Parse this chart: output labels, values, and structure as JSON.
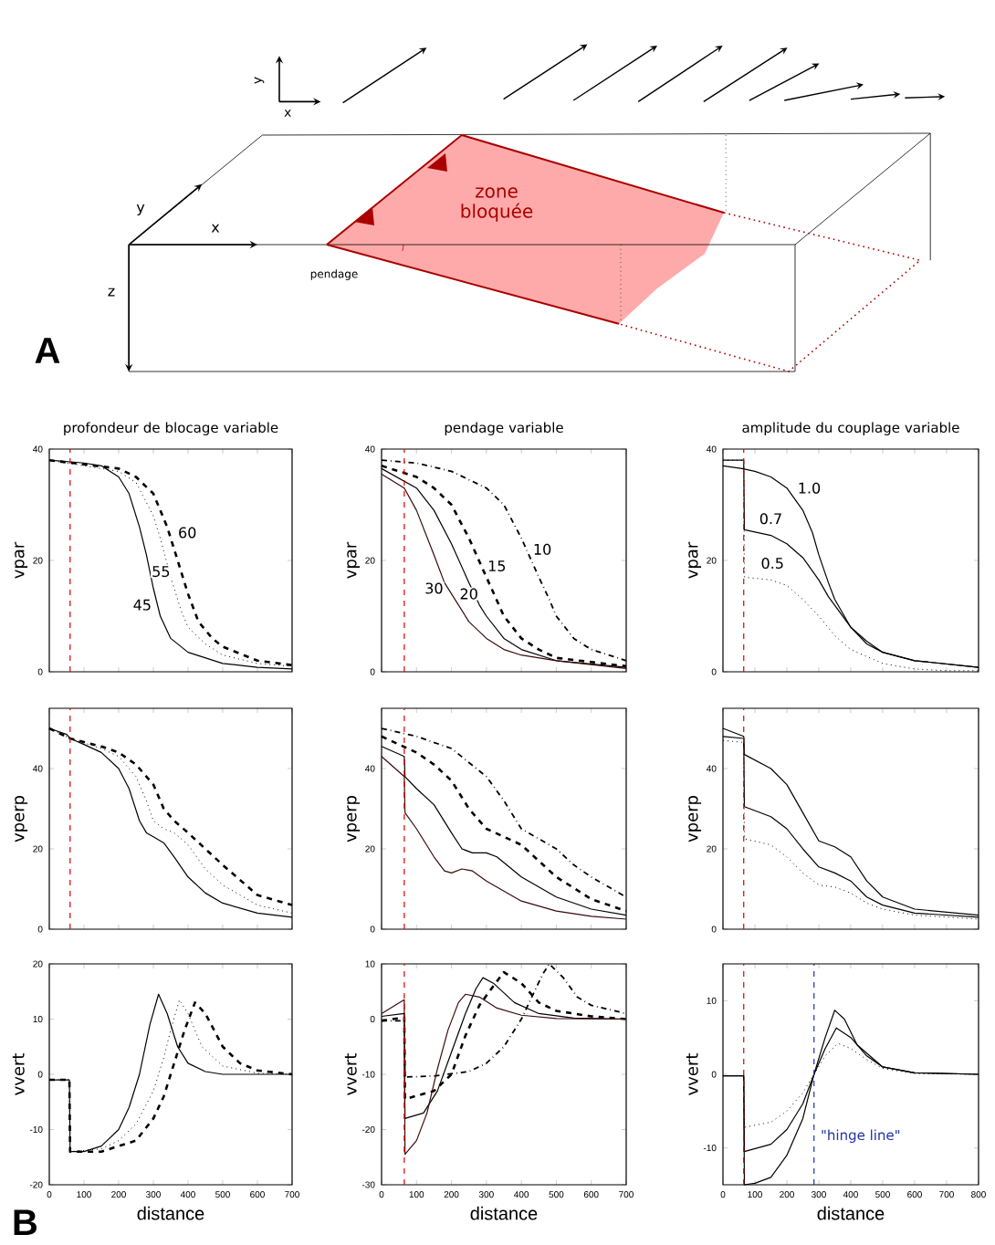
{
  "chart_data": [
    {
      "type": "other",
      "annotations": [
        "A",
        "zone bloquée",
        "pendage",
        "x",
        "y",
        "z",
        "x",
        "y"
      ]
    },
    {
      "type": "line",
      "title": "profondeur de blocage variable",
      "ylabel": "vpar",
      "xlim": [
        0,
        700
      ],
      "ylim": [
        0,
        40
      ],
      "xticks": [
        0,
        100,
        200,
        300,
        400,
        500,
        600,
        700
      ],
      "yticks": [
        0,
        20,
        40
      ],
      "tick_labels": "y",
      "grid": false,
      "legend": false,
      "ref_lines": [
        {
          "axis": "x",
          "value": 60,
          "color": "#dd0000",
          "line_style": "dashed"
        }
      ],
      "series": [
        {
          "name": "45",
          "color": "#000000",
          "line_style": "solid",
          "x": [
            0,
            100,
            150,
            200,
            230,
            260,
            280,
            300,
            320,
            350,
            400,
            500,
            600,
            700
          ],
          "values": [
            38,
            37.5,
            37,
            35,
            32,
            26,
            21,
            15,
            10,
            6,
            3.5,
            1.5,
            0.8,
            0.5
          ]
        },
        {
          "name": "55",
          "color": "#000000",
          "line_style": "dotted",
          "x": [
            0,
            200,
            250,
            300,
            320,
            350,
            380,
            400,
            450,
            500,
            600,
            700
          ],
          "values": [
            38,
            36,
            34,
            28,
            24,
            17,
            11,
            8,
            5,
            3,
            1.5,
            1
          ]
        },
        {
          "name": "60",
          "color": "#000000",
          "line_style": "dashed",
          "x": [
            0,
            200,
            250,
            300,
            340,
            370,
            400,
            430,
            470,
            500,
            600,
            700
          ],
          "values": [
            38,
            36.5,
            35,
            32,
            26,
            20,
            14,
            9,
            6,
            4.5,
            2,
            1.2
          ]
        }
      ]
    },
    {
      "type": "line",
      "title": "pendage variable",
      "ylabel": "vpar",
      "xlim": [
        0,
        700
      ],
      "ylim": [
        0,
        40
      ],
      "xticks": [
        0,
        100,
        200,
        300,
        400,
        500,
        600,
        700
      ],
      "yticks": [
        0,
        20,
        40
      ],
      "tick_labels": "y",
      "grid": false,
      "legend": false,
      "ref_lines": [
        {
          "axis": "x",
          "value": 65,
          "color": "#dd0000",
          "line_style": "dashed"
        }
      ],
      "series": [
        {
          "name": "10",
          "color": "#000000",
          "line_style": "dashdot",
          "x": [
            0,
            100,
            200,
            300,
            350,
            400,
            450,
            480,
            500,
            550,
            600,
            700
          ],
          "values": [
            38,
            37.5,
            36,
            33,
            30,
            24,
            17,
            13,
            10,
            6,
            4,
            2
          ]
        },
        {
          "name": "15",
          "color": "#000000",
          "line_style": "dashed",
          "x": [
            0,
            100,
            150,
            200,
            250,
            300,
            350,
            400,
            450,
            500,
            700
          ],
          "values": [
            37,
            35,
            33,
            30,
            24,
            17,
            10,
            6,
            4,
            2.5,
            1
          ]
        },
        {
          "name": "20",
          "color": "#000000",
          "line_style": "solid",
          "x": [
            0,
            100,
            150,
            200,
            250,
            280,
            300,
            350,
            400,
            500,
            700
          ],
          "values": [
            36.5,
            33,
            29,
            23,
            16,
            12,
            10,
            6,
            4,
            2,
            0.8
          ]
        },
        {
          "name": "30",
          "color": "#3a0a0a",
          "line_style": "solid",
          "x": [
            0,
            65,
            100,
            150,
            180,
            200,
            250,
            300,
            350,
            400,
            500,
            700
          ],
          "values": [
            35.5,
            33,
            29,
            21,
            16,
            14,
            9,
            6,
            4,
            3,
            2,
            0.6
          ]
        }
      ]
    },
    {
      "type": "line",
      "title": "amplitude du couplage variable",
      "ylabel": "vpar",
      "xlim": [
        0,
        800
      ],
      "ylim": [
        0,
        40
      ],
      "xticks": [
        0,
        100,
        200,
        300,
        400,
        500,
        600,
        700,
        800
      ],
      "yticks": [
        0,
        20,
        40
      ],
      "tick_labels": "y",
      "grid": false,
      "legend": false,
      "ref_lines": [
        {
          "axis": "x",
          "value": 65,
          "color": "#dd0000",
          "line_style": "dashed"
        }
      ],
      "series": [
        {
          "name": "1.0",
          "color": "#000000",
          "line_style": "solid",
          "x": [
            0,
            60,
            100,
            150,
            200,
            250,
            280,
            300,
            330,
            350,
            400,
            450,
            500,
            600,
            800
          ],
          "values": [
            37,
            36.5,
            36,
            35,
            33,
            29,
            25,
            21,
            16,
            13,
            8,
            5,
            3.5,
            2,
            0.8
          ]
        },
        {
          "name": "0.7",
          "color": "#000000",
          "line_style": "solid",
          "x": [
            0,
            65,
            67,
            150,
            200,
            250,
            300,
            330,
            400,
            450,
            500,
            600,
            800
          ],
          "values": [
            38,
            38,
            25.5,
            24.5,
            23,
            20.5,
            16.5,
            13.5,
            8,
            5.5,
            3.5,
            2,
            0.8
          ]
        },
        {
          "name": "0.5",
          "color": "#000000",
          "line_style": "dotted",
          "x": [
            0,
            65,
            67,
            150,
            200,
            250,
            300,
            350,
            400,
            500,
            600,
            700,
            800
          ],
          "values": [
            38,
            38,
            17,
            16.5,
            15.5,
            13,
            10,
            6.5,
            4,
            1.5,
            0.5,
            0.2,
            0.2
          ]
        }
      ]
    },
    {
      "type": "line",
      "ylabel": "vperp",
      "xlim": [
        0,
        700
      ],
      "ylim": [
        0,
        55
      ],
      "xticks": [
        0,
        100,
        200,
        300,
        400,
        500,
        600,
        700
      ],
      "yticks": [
        0,
        20,
        40
      ],
      "tick_labels": "y",
      "grid": false,
      "legend": false,
      "ref_lines": [
        {
          "axis": "x",
          "value": 60,
          "color": "#dd0000",
          "line_style": "dashed"
        }
      ],
      "series": [
        {
          "color": "#000000",
          "line_style": "solid",
          "x": [
            0,
            50,
            60,
            100,
            150,
            200,
            230,
            260,
            280,
            300,
            330,
            360,
            400,
            450,
            500,
            600,
            700
          ],
          "values": [
            50,
            48.5,
            47.5,
            46,
            44,
            40,
            35,
            27,
            24,
            23,
            21.5,
            18,
            13,
            9,
            6.5,
            4,
            3
          ]
        },
        {
          "color": "#000000",
          "line_style": "dotted",
          "x": [
            0,
            60,
            150,
            200,
            250,
            280,
            300,
            330,
            360,
            400,
            450,
            500,
            600,
            700
          ],
          "values": [
            50,
            47.5,
            45,
            43,
            38,
            32,
            27,
            25,
            24,
            21,
            15,
            11,
            6,
            4
          ]
        },
        {
          "color": "#000000",
          "line_style": "dashed",
          "x": [
            0,
            60,
            150,
            200,
            250,
            300,
            330,
            360,
            400,
            450,
            500,
            600,
            700
          ],
          "values": [
            50,
            47.5,
            45.5,
            44,
            41,
            36,
            30,
            27,
            24,
            20,
            16,
            8.5,
            6
          ]
        }
      ]
    },
    {
      "type": "line",
      "ylabel": "vperp",
      "xlim": [
        0,
        700
      ],
      "ylim": [
        0,
        55
      ],
      "xticks": [
        0,
        100,
        200,
        300,
        400,
        500,
        600,
        700
      ],
      "yticks": [
        0,
        20,
        40
      ],
      "tick_labels": "y",
      "grid": false,
      "legend": false,
      "ref_lines": [
        {
          "axis": "x",
          "value": 65,
          "color": "#dd0000",
          "line_style": "dashed"
        }
      ],
      "series": [
        {
          "color": "#000000",
          "line_style": "dashdot",
          "x": [
            0,
            100,
            200,
            300,
            350,
            400,
            450,
            500,
            550,
            600,
            700
          ],
          "values": [
            50,
            48,
            45,
            38,
            32,
            25,
            22.5,
            20,
            16,
            13,
            8
          ]
        },
        {
          "color": "#000000",
          "line_style": "dashed",
          "x": [
            0,
            100,
            150,
            200,
            250,
            300,
            350,
            400,
            450,
            500,
            600,
            700
          ],
          "values": [
            48,
            44,
            41,
            37,
            30,
            25,
            23,
            21,
            17,
            13,
            7.5,
            4.5
          ]
        },
        {
          "color": "#000000",
          "line_style": "solid",
          "x": [
            0,
            65,
            67,
            100,
            150,
            200,
            230,
            260,
            300,
            330,
            400,
            500,
            600,
            700
          ],
          "values": [
            45.5,
            43,
            38,
            35,
            31,
            24,
            20,
            19,
            19,
            18,
            13,
            8,
            5,
            3.5
          ]
        },
        {
          "color": "#3a0a0a",
          "line_style": "solid",
          "x": [
            0,
            65,
            67,
            100,
            150,
            180,
            200,
            230,
            260,
            300,
            400,
            500,
            600,
            700
          ],
          "values": [
            43,
            38,
            29,
            25,
            18,
            14.5,
            14,
            15,
            14.5,
            12,
            7,
            4.5,
            3.2,
            2.5
          ]
        }
      ]
    },
    {
      "type": "line",
      "ylabel": "vperp",
      "xlim": [
        0,
        800
      ],
      "ylim": [
        0,
        55
      ],
      "xticks": [
        0,
        100,
        200,
        300,
        400,
        500,
        600,
        700,
        800
      ],
      "yticks": [
        0,
        20,
        40
      ],
      "tick_labels": "y",
      "grid": false,
      "legend": false,
      "ref_lines": [
        {
          "axis": "x",
          "value": 65,
          "color": "#dd0000",
          "line_style": "dashed"
        }
      ],
      "series": [
        {
          "color": "#000000",
          "line_style": "solid",
          "x": [
            0,
            65,
            67,
            150,
            200,
            250,
            300,
            350,
            400,
            450,
            500,
            600,
            800
          ],
          "values": [
            50,
            48,
            43.5,
            40,
            36,
            29,
            22,
            20.5,
            18,
            12,
            8,
            5,
            3.5
          ]
        },
        {
          "color": "#000000",
          "line_style": "solid",
          "x": [
            0,
            65,
            67,
            150,
            200,
            250,
            300,
            350,
            400,
            450,
            500,
            600,
            800
          ],
          "values": [
            48,
            47.5,
            30.5,
            28,
            25,
            20,
            15.5,
            14,
            12,
            8,
            6,
            4,
            3
          ]
        },
        {
          "color": "#000000",
          "line_style": "dotted",
          "x": [
            0,
            65,
            67,
            150,
            200,
            250,
            300,
            350,
            400,
            450,
            500,
            600,
            800
          ],
          "values": [
            47,
            46.5,
            22.5,
            21,
            18,
            14,
            11,
            10.5,
            9,
            6.5,
            5,
            3.5,
            2.5
          ]
        }
      ]
    },
    {
      "type": "line",
      "ylabel": "vvert",
      "xlabel": "distance",
      "xlim": [
        0,
        700
      ],
      "ylim": [
        -20,
        20
      ],
      "xticks": [
        0,
        100,
        200,
        300,
        400,
        500,
        600,
        700
      ],
      "yticks": [
        -20,
        -10,
        0,
        10,
        20
      ],
      "grid": false,
      "legend": false,
      "annotations": [
        "B"
      ],
      "series": [
        {
          "color": "#000000",
          "line_style": "solid",
          "x": [
            0,
            58,
            60,
            100,
            150,
            200,
            230,
            260,
            290,
            315,
            340,
            370,
            400,
            450,
            500,
            700
          ],
          "values": [
            -1,
            -1,
            -14,
            -14,
            -13,
            -10,
            -6,
            0,
            9,
            14.5,
            11,
            5,
            2,
            0.5,
            0,
            0
          ]
        },
        {
          "color": "#000000",
          "line_style": "dotted",
          "x": [
            0,
            58,
            60,
            150,
            200,
            250,
            300,
            330,
            350,
            375,
            400,
            440,
            500,
            600,
            700
          ],
          "values": [
            -1,
            -1,
            -14,
            -13.5,
            -12,
            -9,
            -3,
            3,
            8,
            13.5,
            11,
            5,
            1.5,
            0.2,
            0
          ]
        },
        {
          "color": "#000000",
          "line_style": "dashed",
          "x": [
            0,
            58,
            60,
            150,
            250,
            300,
            330,
            360,
            390,
            420,
            450,
            500,
            550,
            600,
            700
          ],
          "values": [
            -1,
            -1,
            -14,
            -14,
            -12,
            -8,
            -4,
            2,
            8,
            13,
            11,
            5,
            2,
            0.7,
            0
          ]
        }
      ]
    },
    {
      "type": "line",
      "ylabel": "vvert",
      "xlabel": "distance",
      "xlim": [
        0,
        700
      ],
      "ylim": [
        -30,
        10
      ],
      "xticks": [
        0,
        100,
        200,
        300,
        400,
        500,
        600,
        700
      ],
      "yticks": [
        -30,
        -20,
        -10,
        0,
        10
      ],
      "grid": false,
      "legend": false,
      "ref_lines": [
        {
          "axis": "x",
          "value": 65,
          "color": "#dd0000",
          "line_style": "dashed"
        }
      ],
      "series": [
        {
          "color": "#000000",
          "line_style": "dashdot",
          "x": [
            0,
            65,
            67,
            150,
            250,
            300,
            350,
            400,
            430,
            460,
            480,
            520,
            560,
            600,
            700
          ],
          "values": [
            -0.3,
            -0.3,
            -10.5,
            -10.3,
            -9.5,
            -8,
            -5,
            0,
            4,
            8,
            10,
            7.5,
            4,
            2.5,
            1
          ]
        },
        {
          "color": "#000000",
          "line_style": "dashed",
          "x": [
            0,
            65,
            67,
            150,
            200,
            240,
            280,
            320,
            350,
            400,
            450,
            500,
            600,
            700
          ],
          "values": [
            -0.3,
            0.3,
            -14.5,
            -13,
            -10,
            -3,
            2.5,
            6,
            8.5,
            6.5,
            3,
            1.5,
            0.5,
            0
          ]
        },
        {
          "color": "#000000",
          "line_style": "solid",
          "x": [
            0,
            65,
            67,
            120,
            160,
            200,
            240,
            270,
            290,
            320,
            380,
            450,
            550,
            700
          ],
          "values": [
            0.5,
            1,
            -18,
            -17,
            -13,
            -6,
            1,
            5.5,
            7.5,
            6.5,
            3,
            1,
            0.2,
            0
          ]
        },
        {
          "color": "#3a0a0a",
          "line_style": "solid",
          "x": [
            0,
            65,
            67,
            100,
            130,
            160,
            190,
            220,
            240,
            280,
            330,
            400,
            500,
            700
          ],
          "values": [
            1,
            3.5,
            -24.5,
            -22,
            -17,
            -9,
            -2,
            3,
            4.5,
            4,
            2,
            0.7,
            0.1,
            0
          ]
        }
      ]
    },
    {
      "type": "line",
      "ylabel": "vvert",
      "xlabel": "distance",
      "xlim": [
        0,
        800
      ],
      "ylim": [
        -15,
        15
      ],
      "xticks": [
        0,
        100,
        200,
        300,
        400,
        500,
        600,
        700,
        800
      ],
      "yticks": [
        -10,
        0,
        10
      ],
      "grid": false,
      "legend": false,
      "ref_lines": [
        {
          "axis": "x",
          "value": 65,
          "color": "#dd0000",
          "line_style": "dashed"
        },
        {
          "axis": "x",
          "value": 285,
          "color": "#2233aa",
          "line_style": "dashed",
          "label": "\"hinge line\""
        }
      ],
      "series": [
        {
          "color": "#000000",
          "line_style": "solid",
          "x": [
            0,
            65,
            67,
            100,
            150,
            200,
            250,
            285,
            320,
            350,
            380,
            420,
            500,
            600,
            800
          ],
          "values": [
            -0.2,
            -0.2,
            -15,
            -14.8,
            -14,
            -11,
            -6,
            0,
            5,
            8.7,
            7.5,
            4,
            1,
            0.2,
            0
          ]
        },
        {
          "color": "#000000",
          "line_style": "solid",
          "x": [
            0,
            65,
            67,
            150,
            200,
            250,
            285,
            320,
            355,
            400,
            450,
            500,
            600,
            800
          ],
          "values": [
            -0.2,
            -0.2,
            -10.5,
            -9.5,
            -7.5,
            -4,
            0,
            3.5,
            6.3,
            5,
            2.5,
            1,
            0.2,
            0
          ]
        },
        {
          "color": "#000000",
          "line_style": "dotted",
          "x": [
            0,
            65,
            67,
            150,
            200,
            250,
            285,
            320,
            360,
            400,
            450,
            500,
            600,
            800
          ],
          "values": [
            -0.2,
            -0.2,
            -7.2,
            -6.5,
            -5,
            -2.5,
            0,
            2.5,
            4.2,
            3.5,
            2,
            0.8,
            0.1,
            0
          ]
        }
      ]
    }
  ]
}
